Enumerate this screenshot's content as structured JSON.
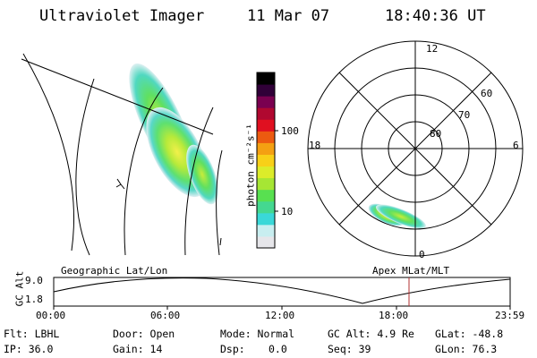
{
  "header": {
    "title": "Ultraviolet Imager",
    "date": "11 Mar 07",
    "time": "18:40:36 UT"
  },
  "colorbar": {
    "label": "photon cm⁻²s⁻¹",
    "ticks": [
      "100",
      "10"
    ],
    "colors": [
      "#e6e6ea",
      "#c8eef0",
      "#3ad8d8",
      "#44d890",
      "#58e050",
      "#a6e634",
      "#dcec2a",
      "#f8d018",
      "#f4a012",
      "#ec5a10",
      "#e01020",
      "#b00830",
      "#7a0050",
      "#300038",
      "#000000"
    ]
  },
  "polar": {
    "hour_labels": [
      "12",
      "18",
      "6",
      "0"
    ],
    "lat_labels": [
      "60",
      "70",
      "80"
    ]
  },
  "timeline": {
    "left_title": "Geographic Lat/Lon",
    "right_title": "Apex MLat/MLT",
    "ylabel": "GC Alt",
    "y_ticks": [
      "9.0",
      "1.8"
    ],
    "x_ticks": [
      "00:00",
      "06:00",
      "12:00",
      "18:00",
      "23:59"
    ],
    "marker_color": "#b03030"
  },
  "info": {
    "filter": "Flt: LBHL",
    "ip": "IP: 36.0",
    "door": "Door: Open",
    "gain": "Gain: 14",
    "mode": "Mode: Normal",
    "dsp_label": "Dsp:",
    "dsp_value": "0.0",
    "gc_alt": "GC Alt: 4.9 Re",
    "seq": "Seq: 39",
    "glat": "GLat: -48.8",
    "glon": "GLon:  76.3"
  }
}
